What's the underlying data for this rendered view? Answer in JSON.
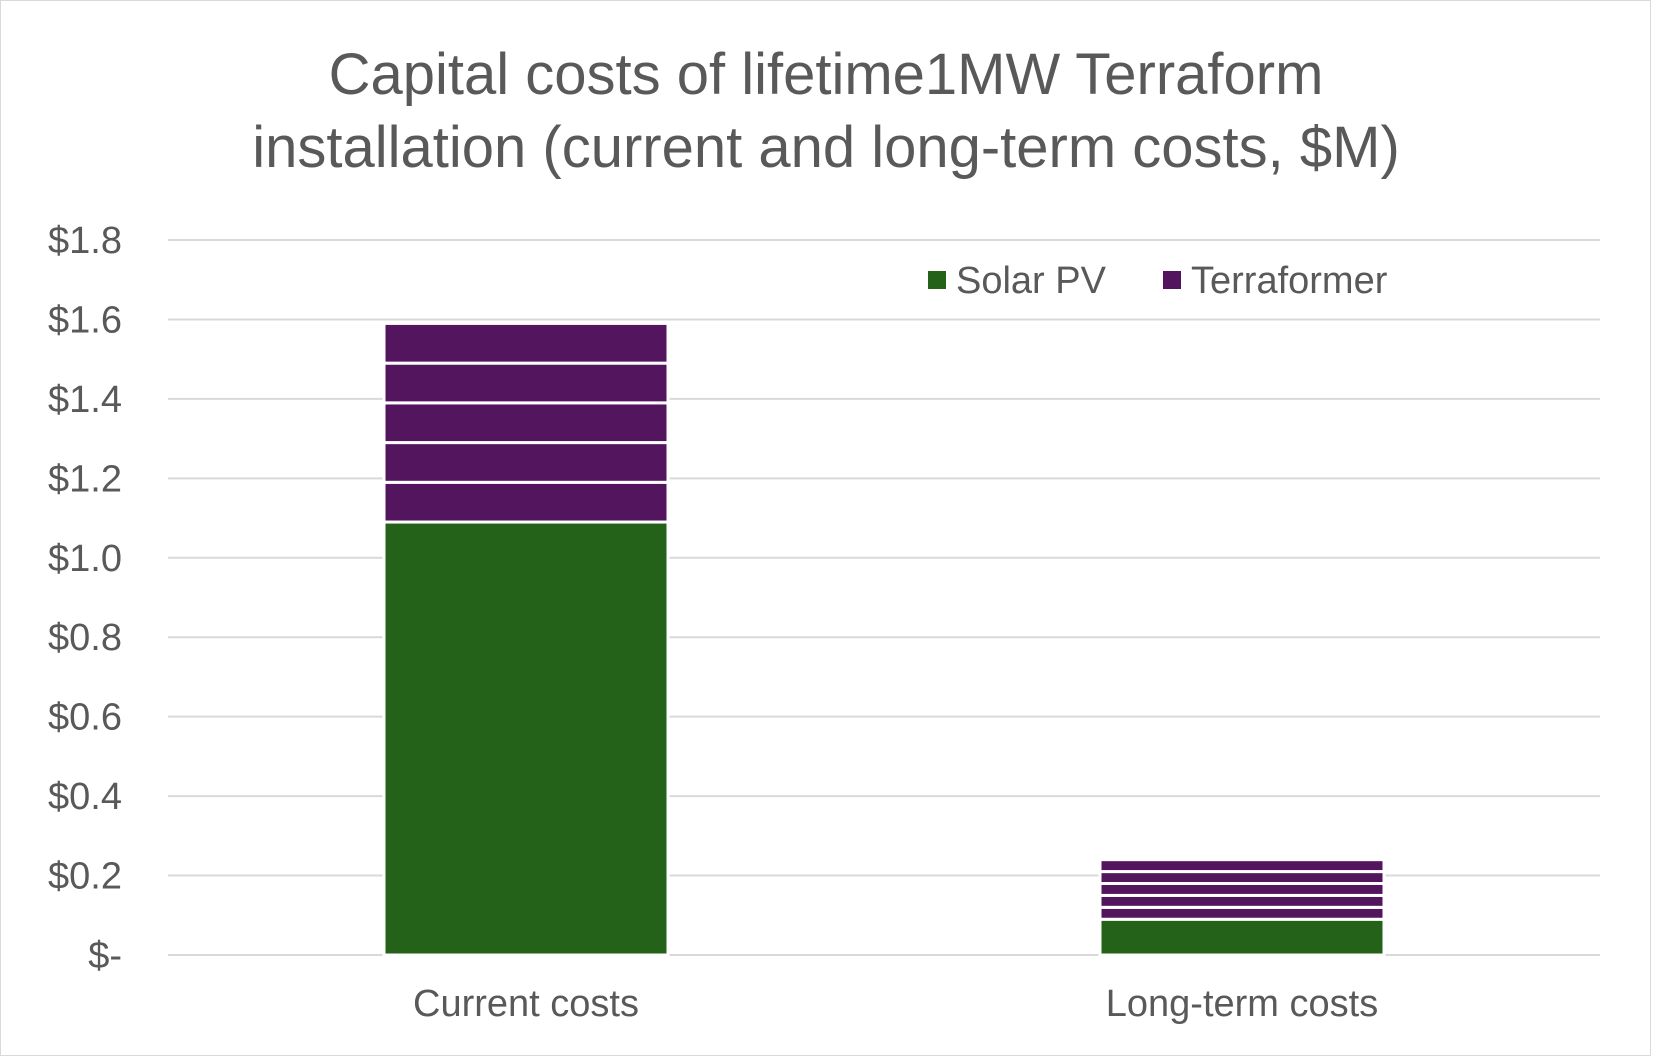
{
  "chart_data": {
    "type": "bar",
    "stacked": true,
    "title_lines": [
      "Capital costs of lifetime1MW Terraform",
      "installation (current and long-term costs, $M)"
    ],
    "categories": [
      "Current costs",
      "Long-term costs"
    ],
    "series": [
      {
        "name": "Solar PV",
        "color": "#246219",
        "values": [
          1.09,
          0.09
        ],
        "segments": [
          1,
          1
        ]
      },
      {
        "name": "Terraformer",
        "color": "#53155e",
        "values": [
          0.5,
          0.15
        ],
        "segments": [
          5,
          5
        ]
      }
    ],
    "yticks": [
      "$-",
      "$0.2",
      "$0.4",
      "$0.6",
      "$0.8",
      "$1.0",
      "$1.2",
      "$1.4",
      "$1.6",
      "$1.8"
    ],
    "ylim": [
      0,
      1.8
    ],
    "ystep": 0.2,
    "grid": true,
    "legend_position": "top-right"
  }
}
